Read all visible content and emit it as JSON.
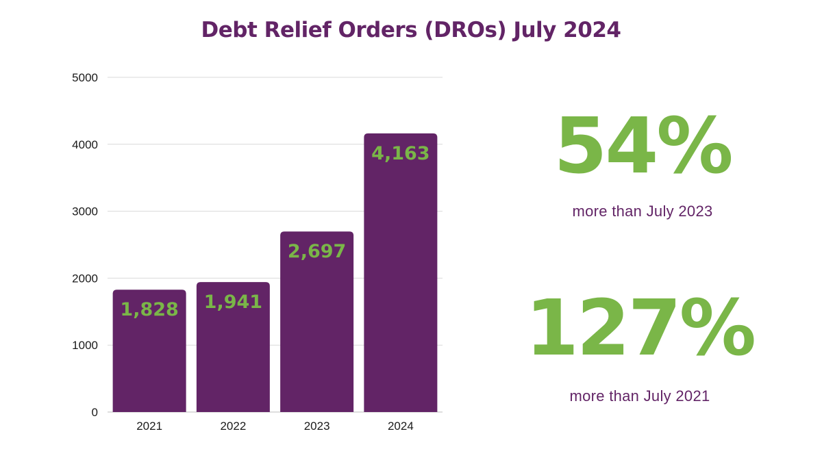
{
  "chart_data": {
    "type": "bar",
    "title": "Debt Relief Orders (DROs) July 2024",
    "categories": [
      "2021",
      "2022",
      "2023",
      "2024"
    ],
    "values": [
      1828,
      1941,
      2697,
      4163
    ],
    "data_labels": [
      "1,828",
      "1,941",
      "2,697",
      "4,163"
    ],
    "yticks": [
      "0",
      "1000",
      "2000",
      "3000",
      "4000",
      "5000"
    ],
    "ylim": [
      0,
      5000
    ],
    "xlabel": "",
    "ylabel": "",
    "grid": true,
    "legend": "none",
    "bar_color": "#622466",
    "label_color": "#7ab648"
  },
  "stats": [
    {
      "value": "54%",
      "caption": "more than July 2023"
    },
    {
      "value": "127%",
      "caption": "more than July 2021"
    }
  ],
  "colors": {
    "purple": "#622466",
    "green": "#7ab648",
    "grid": "#d9d9d9"
  }
}
